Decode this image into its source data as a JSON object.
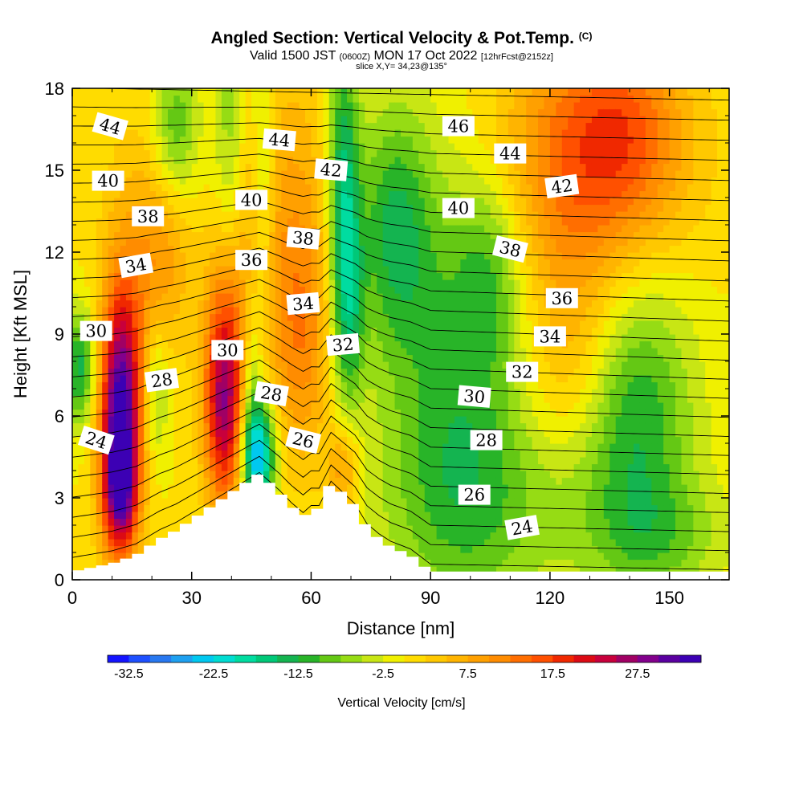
{
  "header": {
    "title": "Angled Section: Vertical Velocity & Pot.Temp.",
    "title_mark": "(C)",
    "valid_prefix": "Valid 1500 JST",
    "valid_utc": "(0600Z)",
    "valid_date": "MON 17 Oct 2022",
    "forecast_info": "[12hrFcst@2152z]",
    "slice_info": "slice X,Y= 34,23@135°"
  },
  "chart_data": {
    "type": "heatmap",
    "xlabel": "Distance [nm]",
    "ylabel": "Height [Kft MSL]",
    "xlim": [
      0,
      165
    ],
    "ylim": [
      0,
      18
    ],
    "xticks": [
      "0",
      "30",
      "60",
      "90",
      "120",
      "150"
    ],
    "yticks": [
      "0",
      "3",
      "6",
      "9",
      "12",
      "15",
      "18"
    ],
    "colorbar": {
      "title": "Vertical Velocity [cm/s]",
      "labels": [
        "-32.5",
        "-22.5",
        "-12.5",
        "-2.5",
        "7.5",
        "17.5",
        "27.5"
      ],
      "label_values": [
        -32.5,
        -22.5,
        -12.5,
        -2.5,
        7.5,
        17.5,
        27.5
      ],
      "range": [
        -35,
        35
      ],
      "step": 2.5,
      "colors": [
        "#1414ff",
        "#1e50ff",
        "#2878f0",
        "#1ea0f0",
        "#00c8f0",
        "#00dcd2",
        "#00dca0",
        "#00c878",
        "#14b450",
        "#28b428",
        "#64c814",
        "#96dc14",
        "#c8e614",
        "#f0f000",
        "#ffdc00",
        "#ffc800",
        "#ffb400",
        "#ffa000",
        "#ff8c00",
        "#ff6e00",
        "#ff5000",
        "#f02800",
        "#dc0a14",
        "#c8003c",
        "#a00064",
        "#82008c",
        "#5a00a0",
        "#3c00b4"
      ]
    },
    "terrain_profile": {
      "x": [
        0,
        10,
        16,
        19,
        22,
        26,
        29,
        32,
        35,
        38,
        41,
        44,
        47,
        52,
        55,
        58,
        60,
        62,
        65,
        71,
        74,
        77,
        80,
        85,
        90,
        165
      ],
      "height": [
        0.3,
        0.6,
        0.9,
        1.2,
        1.5,
        1.8,
        2.1,
        2.4,
        2.7,
        3.0,
        3.3,
        3.6,
        3.9,
        3.2,
        2.7,
        2.3,
        2.6,
        2.6,
        3.6,
        2.7,
        1.9,
        1.5,
        1.2,
        0.9,
        0.3,
        0.3
      ]
    },
    "vertical_velocity_features": [
      {
        "x": 12,
        "z": 5.5,
        "sx": 3.5,
        "sz": 3.2,
        "w": 34
      },
      {
        "x": 12,
        "z": 3.2,
        "sx": 3.0,
        "sz": 1.2,
        "w": 12
      },
      {
        "x": 16,
        "z": 10.5,
        "sx": 6,
        "sz": 4,
        "w": 8
      },
      {
        "x": 24,
        "z": 12.0,
        "sx": 5,
        "sz": 2.5,
        "w": 6
      },
      {
        "x": 38,
        "z": 6.0,
        "sx": 3.5,
        "sz": 2.5,
        "w": 20
      },
      {
        "x": 38,
        "z": 9.0,
        "sx": 3.5,
        "sz": 3,
        "w": 10
      },
      {
        "x": 44,
        "z": 12.0,
        "sx": 4,
        "sz": 5,
        "w": 6
      },
      {
        "x": 55,
        "z": 12.0,
        "sx": 8,
        "sz": 5,
        "w": 9
      },
      {
        "x": 58,
        "z": 8.5,
        "sx": 5,
        "sz": 3,
        "w": 6
      },
      {
        "x": 130,
        "z": 15.5,
        "sx": 16,
        "sz": 3.5,
        "w": 15
      },
      {
        "x": 140,
        "z": 16.5,
        "sx": 10,
        "sz": 2.5,
        "w": 6
      },
      {
        "x": 68,
        "z": 4.0,
        "sx": 3,
        "sz": 1.2,
        "w": 10
      },
      {
        "x": 125,
        "z": 8.5,
        "sx": 8,
        "sz": 3,
        "w": 6
      },
      {
        "x": 2,
        "z": 7.8,
        "sx": 3,
        "sz": 1.5,
        "w": -14
      },
      {
        "x": 21,
        "z": 7.0,
        "sx": 2.5,
        "sz": 2,
        "w": -9
      },
      {
        "x": 26,
        "z": 16.5,
        "sx": 4,
        "sz": 2,
        "w": -10
      },
      {
        "x": 40,
        "z": 16.0,
        "sx": 3,
        "sz": 4,
        "w": -9
      },
      {
        "x": 47,
        "z": 4.5,
        "sx": 3,
        "sz": 1.5,
        "w": -24
      },
      {
        "x": 45,
        "z": 7.0,
        "sx": 2,
        "sz": 3,
        "w": -10
      },
      {
        "x": 48,
        "z": 15.0,
        "sx": 2.2,
        "sz": 4.5,
        "w": -9
      },
      {
        "x": 68,
        "z": 14.0,
        "sx": 2.8,
        "sz": 4.5,
        "w": -16
      },
      {
        "x": 70,
        "z": 10.0,
        "sx": 2.5,
        "sz": 2.5,
        "w": -8
      },
      {
        "x": 81,
        "z": 13.0,
        "sx": 7,
        "sz": 3.2,
        "w": -12
      },
      {
        "x": 105,
        "z": 11.5,
        "sx": 6,
        "sz": 2.5,
        "w": -7
      },
      {
        "x": 95,
        "z": 6.0,
        "sx": 14,
        "sz": 5,
        "w": -7
      },
      {
        "x": 142,
        "z": 6.0,
        "sx": 10,
        "sz": 4,
        "w": -12
      },
      {
        "x": 110,
        "z": 2.5,
        "sx": 22,
        "sz": 2.5,
        "w": -5
      },
      {
        "x": 150,
        "z": 1.5,
        "sx": 12,
        "sz": 1.5,
        "w": -5
      },
      {
        "x": 98,
        "z": 8.0,
        "sx": 10,
        "sz": 6,
        "w": -4
      }
    ],
    "theta_contours": {
      "levels_start": 23,
      "levels_end": 47,
      "labeled": [
        {
          "text": "44",
          "x": 9.5,
          "z": 16.6,
          "rot": 16
        },
        {
          "text": "40",
          "x": 9,
          "z": 14.6,
          "rot": 0
        },
        {
          "text": "38",
          "x": 19,
          "z": 13.3,
          "rot": 0
        },
        {
          "text": "34",
          "x": 16,
          "z": 11.5,
          "rot": -10
        },
        {
          "text": "30",
          "x": 6,
          "z": 9.1,
          "rot": 0
        },
        {
          "text": "28",
          "x": 22.5,
          "z": 7.3,
          "rot": -8
        },
        {
          "text": "24",
          "x": 6,
          "z": 5.1,
          "rot": 18
        },
        {
          "text": "44",
          "x": 52,
          "z": 16.1,
          "rot": 5
        },
        {
          "text": "40",
          "x": 45,
          "z": 13.9,
          "rot": 0
        },
        {
          "text": "36",
          "x": 45,
          "z": 11.7,
          "rot": 0
        },
        {
          "text": "30",
          "x": 39,
          "z": 8.4,
          "rot": 0
        },
        {
          "text": "42",
          "x": 65,
          "z": 15.0,
          "rot": 5
        },
        {
          "text": "38",
          "x": 58,
          "z": 12.5,
          "rot": 5
        },
        {
          "text": "34",
          "x": 58,
          "z": 10.1,
          "rot": -5
        },
        {
          "text": "28",
          "x": 50,
          "z": 6.8,
          "rot": 10
        },
        {
          "text": "32",
          "x": 68,
          "z": 8.6,
          "rot": -5
        },
        {
          "text": "26",
          "x": 58,
          "z": 5.1,
          "rot": 14
        },
        {
          "text": "46",
          "x": 97,
          "z": 16.6,
          "rot": 0
        },
        {
          "text": "44",
          "x": 110,
          "z": 15.6,
          "rot": 0
        },
        {
          "text": "40",
          "x": 97,
          "z": 13.6,
          "rot": 0
        },
        {
          "text": "42",
          "x": 123,
          "z": 14.4,
          "rot": -8
        },
        {
          "text": "38",
          "x": 110,
          "z": 12.1,
          "rot": 14
        },
        {
          "text": "36",
          "x": 123,
          "z": 10.3,
          "rot": 0
        },
        {
          "text": "34",
          "x": 120,
          "z": 8.9,
          "rot": 0
        },
        {
          "text": "32",
          "x": 113,
          "z": 7.6,
          "rot": 0
        },
        {
          "text": "30",
          "x": 101,
          "z": 6.7,
          "rot": 5
        },
        {
          "text": "28",
          "x": 104,
          "z": 5.1,
          "rot": 0
        },
        {
          "text": "26",
          "x": 101,
          "z": 3.1,
          "rot": 0
        },
        {
          "text": "24",
          "x": 113,
          "z": 1.9,
          "rot": -10
        }
      ]
    }
  }
}
